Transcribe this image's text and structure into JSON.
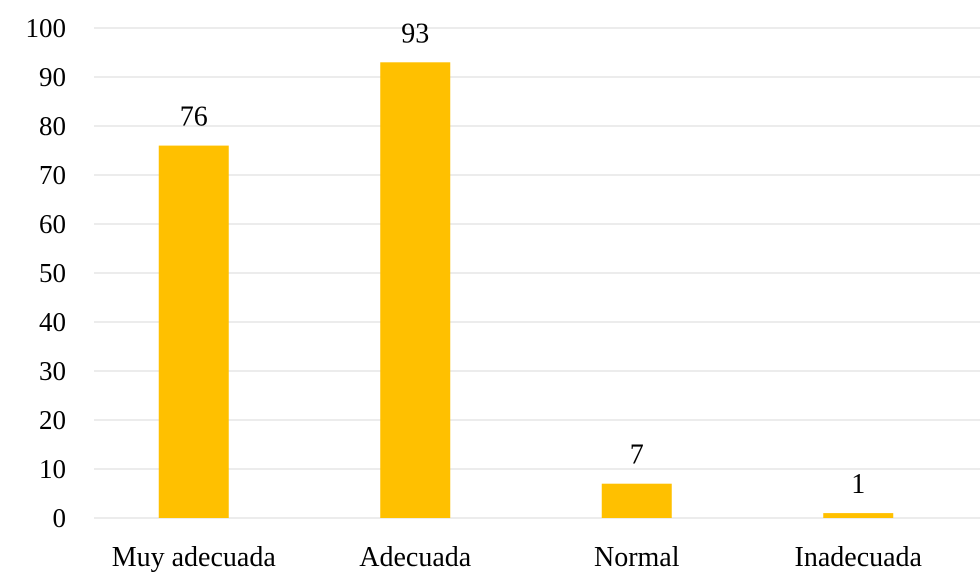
{
  "chart_data": {
    "type": "bar",
    "title": "",
    "xlabel": "",
    "ylabel": "",
    "categories": [
      "Muy adecuada",
      "Adecuada",
      "Normal",
      "Inadecuada"
    ],
    "values": [
      76,
      93,
      7,
      1
    ],
    "data_labels": [
      "76",
      "93",
      "7",
      "1"
    ],
    "ylim": [
      0,
      100
    ],
    "yticks": [
      0,
      10,
      20,
      30,
      40,
      50,
      60,
      70,
      80,
      90,
      100
    ],
    "grid": true,
    "legend": "none",
    "colors": {
      "bar": "#FFC000",
      "grid": "#D9D9D9",
      "axis": "#D9D9D9",
      "text": "#000000"
    }
  }
}
